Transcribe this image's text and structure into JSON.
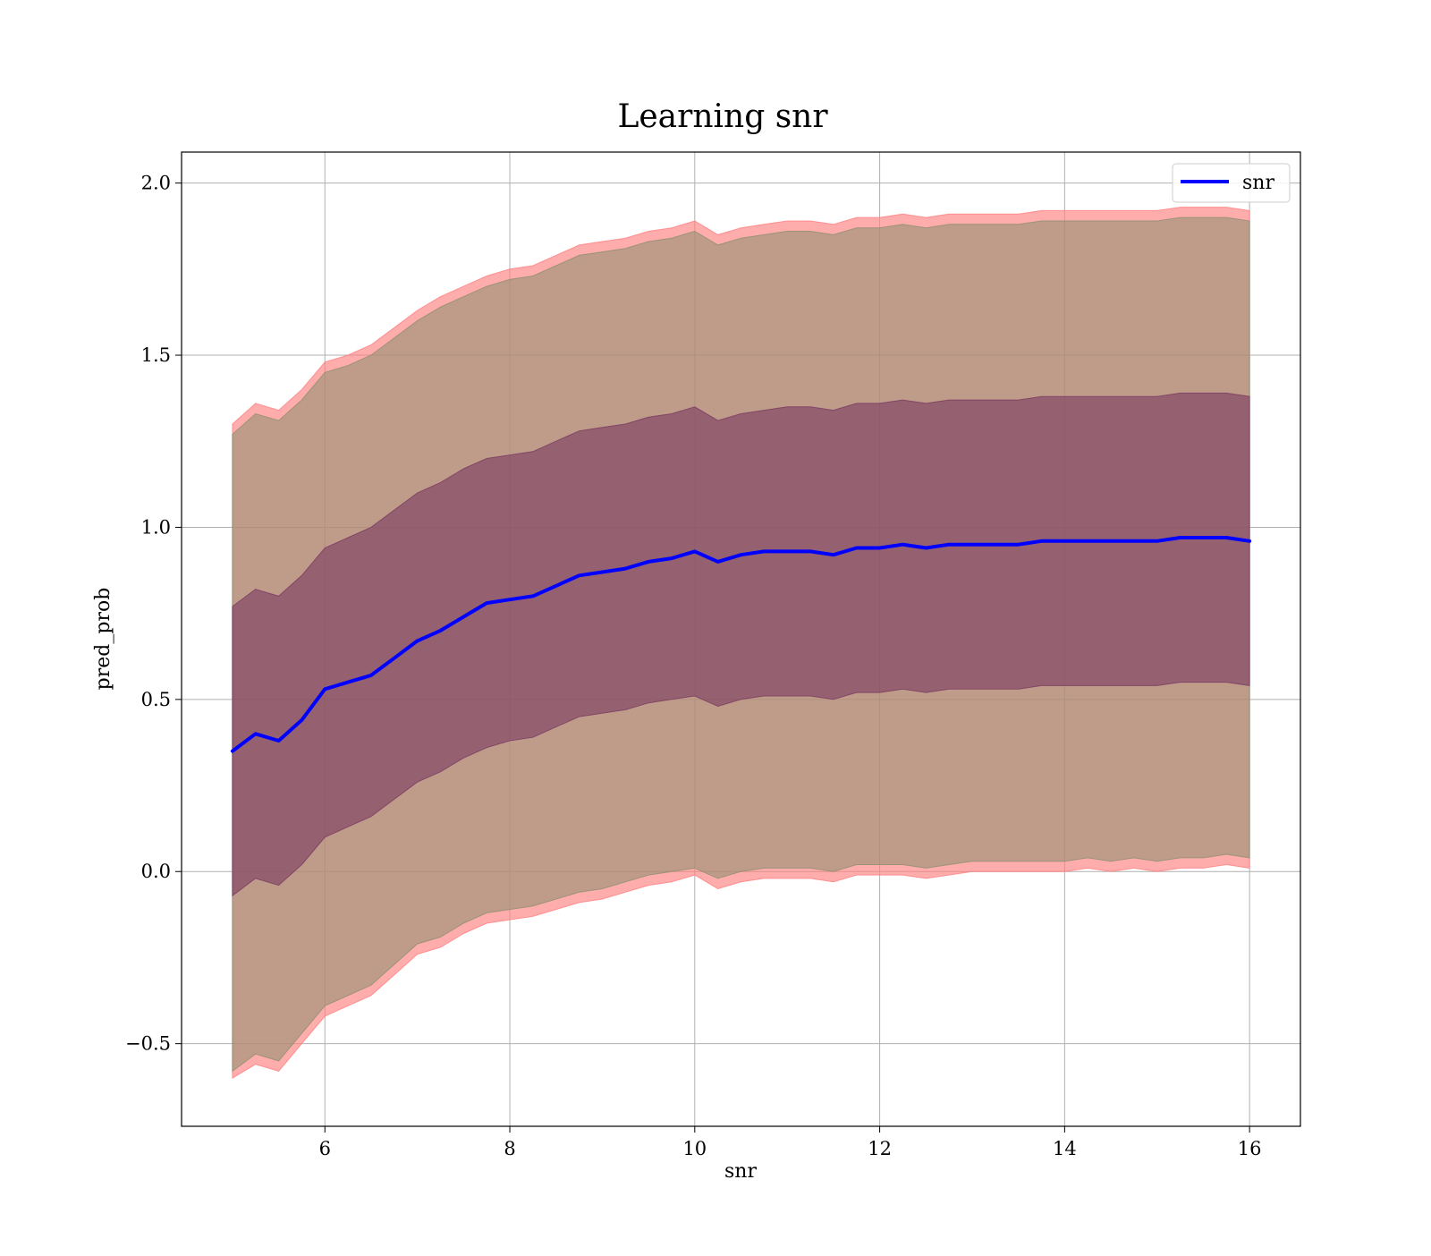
{
  "chart_data": {
    "type": "area",
    "title": "Learning snr",
    "xlabel": "snr",
    "ylabel": "pred_prob",
    "xlim": [
      4.45,
      16.55
    ],
    "ylim": [
      -0.74,
      2.09
    ],
    "x_ticks": [
      6,
      8,
      10,
      12,
      14,
      16
    ],
    "x_tick_labels": [
      "6",
      "8",
      "10",
      "12",
      "14",
      "16"
    ],
    "y_ticks": [
      -0.5,
      0.0,
      0.5,
      1.0,
      1.5,
      2.0
    ],
    "y_tick_labels": [
      "−0.5",
      "0.0",
      "0.5",
      "1.0",
      "1.5",
      "2.0"
    ],
    "grid": true,
    "legend": {
      "position": "top-right",
      "entries": [
        {
          "label": "snr",
          "color": "#0000ff"
        }
      ]
    },
    "x": [
      5.0,
      5.25,
      5.5,
      5.75,
      6.0,
      6.25,
      6.5,
      6.75,
      7.0,
      7.25,
      7.5,
      7.75,
      8.0,
      8.25,
      8.5,
      8.75,
      9.0,
      9.25,
      9.5,
      9.75,
      10.0,
      10.25,
      10.5,
      10.75,
      11.0,
      11.25,
      11.5,
      11.75,
      12.0,
      12.25,
      12.5,
      12.75,
      13.0,
      13.25,
      13.5,
      13.75,
      14.0,
      14.25,
      14.5,
      14.75,
      15.0,
      15.25,
      15.5,
      15.75,
      16.0
    ],
    "series": [
      {
        "name": "snr",
        "color": "#0000ff",
        "values": [
          0.35,
          0.4,
          0.38,
          0.44,
          0.53,
          0.55,
          0.57,
          0.62,
          0.67,
          0.7,
          0.74,
          0.78,
          0.79,
          0.8,
          0.83,
          0.86,
          0.87,
          0.88,
          0.9,
          0.91,
          0.93,
          0.9,
          0.92,
          0.93,
          0.93,
          0.93,
          0.92,
          0.94,
          0.94,
          0.95,
          0.94,
          0.95,
          0.95,
          0.95,
          0.95,
          0.96,
          0.96,
          0.96,
          0.96,
          0.96,
          0.96,
          0.97,
          0.97,
          0.97,
          0.96
        ]
      }
    ],
    "bands": [
      {
        "color": "#ff8080",
        "opacity": 0.65,
        "lower": [
          -0.6,
          -0.56,
          -0.58,
          -0.5,
          -0.42,
          -0.39,
          -0.36,
          -0.3,
          -0.24,
          -0.22,
          -0.18,
          -0.15,
          -0.14,
          -0.13,
          -0.11,
          -0.09,
          -0.08,
          -0.06,
          -0.04,
          -0.03,
          -0.01,
          -0.05,
          -0.03,
          -0.02,
          -0.02,
          -0.02,
          -0.03,
          -0.01,
          -0.01,
          -0.01,
          -0.02,
          -0.01,
          0.0,
          0.0,
          0.0,
          0.0,
          0.0,
          0.01,
          0.0,
          0.01,
          0.0,
          0.01,
          0.01,
          0.02,
          0.01
        ],
        "upper": [
          1.3,
          1.36,
          1.34,
          1.4,
          1.48,
          1.5,
          1.53,
          1.58,
          1.63,
          1.67,
          1.7,
          1.73,
          1.75,
          1.76,
          1.79,
          1.82,
          1.83,
          1.84,
          1.86,
          1.87,
          1.89,
          1.85,
          1.87,
          1.88,
          1.89,
          1.89,
          1.88,
          1.9,
          1.9,
          1.91,
          1.9,
          1.91,
          1.91,
          1.91,
          1.91,
          1.92,
          1.92,
          1.92,
          1.92,
          1.92,
          1.92,
          1.93,
          1.93,
          1.93,
          1.92
        ]
      },
      {
        "color": "#8b9070",
        "opacity": 0.55,
        "lower": [
          -0.58,
          -0.53,
          -0.55,
          -0.47,
          -0.39,
          -0.36,
          -0.33,
          -0.27,
          -0.21,
          -0.19,
          -0.15,
          -0.12,
          -0.11,
          -0.1,
          -0.08,
          -0.06,
          -0.05,
          -0.03,
          -0.01,
          0.0,
          0.01,
          -0.02,
          0.0,
          0.01,
          0.01,
          0.01,
          0.0,
          0.02,
          0.02,
          0.02,
          0.01,
          0.02,
          0.03,
          0.03,
          0.03,
          0.03,
          0.03,
          0.04,
          0.03,
          0.04,
          0.03,
          0.04,
          0.04,
          0.05,
          0.04
        ],
        "upper": [
          1.27,
          1.33,
          1.31,
          1.37,
          1.45,
          1.47,
          1.5,
          1.55,
          1.6,
          1.64,
          1.67,
          1.7,
          1.72,
          1.73,
          1.76,
          1.79,
          1.8,
          1.81,
          1.83,
          1.84,
          1.86,
          1.82,
          1.84,
          1.85,
          1.86,
          1.86,
          1.85,
          1.87,
          1.87,
          1.88,
          1.87,
          1.88,
          1.88,
          1.88,
          1.88,
          1.89,
          1.89,
          1.89,
          1.89,
          1.89,
          1.89,
          1.9,
          1.9,
          1.9,
          1.89
        ]
      },
      {
        "color": "#7a3a60",
        "opacity": 0.6,
        "lower": [
          -0.07,
          -0.02,
          -0.04,
          0.02,
          0.1,
          0.13,
          0.16,
          0.21,
          0.26,
          0.29,
          0.33,
          0.36,
          0.38,
          0.39,
          0.42,
          0.45,
          0.46,
          0.47,
          0.49,
          0.5,
          0.51,
          0.48,
          0.5,
          0.51,
          0.51,
          0.51,
          0.5,
          0.52,
          0.52,
          0.53,
          0.52,
          0.53,
          0.53,
          0.53,
          0.53,
          0.54,
          0.54,
          0.54,
          0.54,
          0.54,
          0.54,
          0.55,
          0.55,
          0.55,
          0.54
        ],
        "upper": [
          0.77,
          0.82,
          0.8,
          0.86,
          0.94,
          0.97,
          1.0,
          1.05,
          1.1,
          1.13,
          1.17,
          1.2,
          1.21,
          1.22,
          1.25,
          1.28,
          1.29,
          1.3,
          1.32,
          1.33,
          1.35,
          1.31,
          1.33,
          1.34,
          1.35,
          1.35,
          1.34,
          1.36,
          1.36,
          1.37,
          1.36,
          1.37,
          1.37,
          1.37,
          1.37,
          1.38,
          1.38,
          1.38,
          1.38,
          1.38,
          1.38,
          1.39,
          1.39,
          1.39,
          1.38
        ]
      }
    ]
  }
}
